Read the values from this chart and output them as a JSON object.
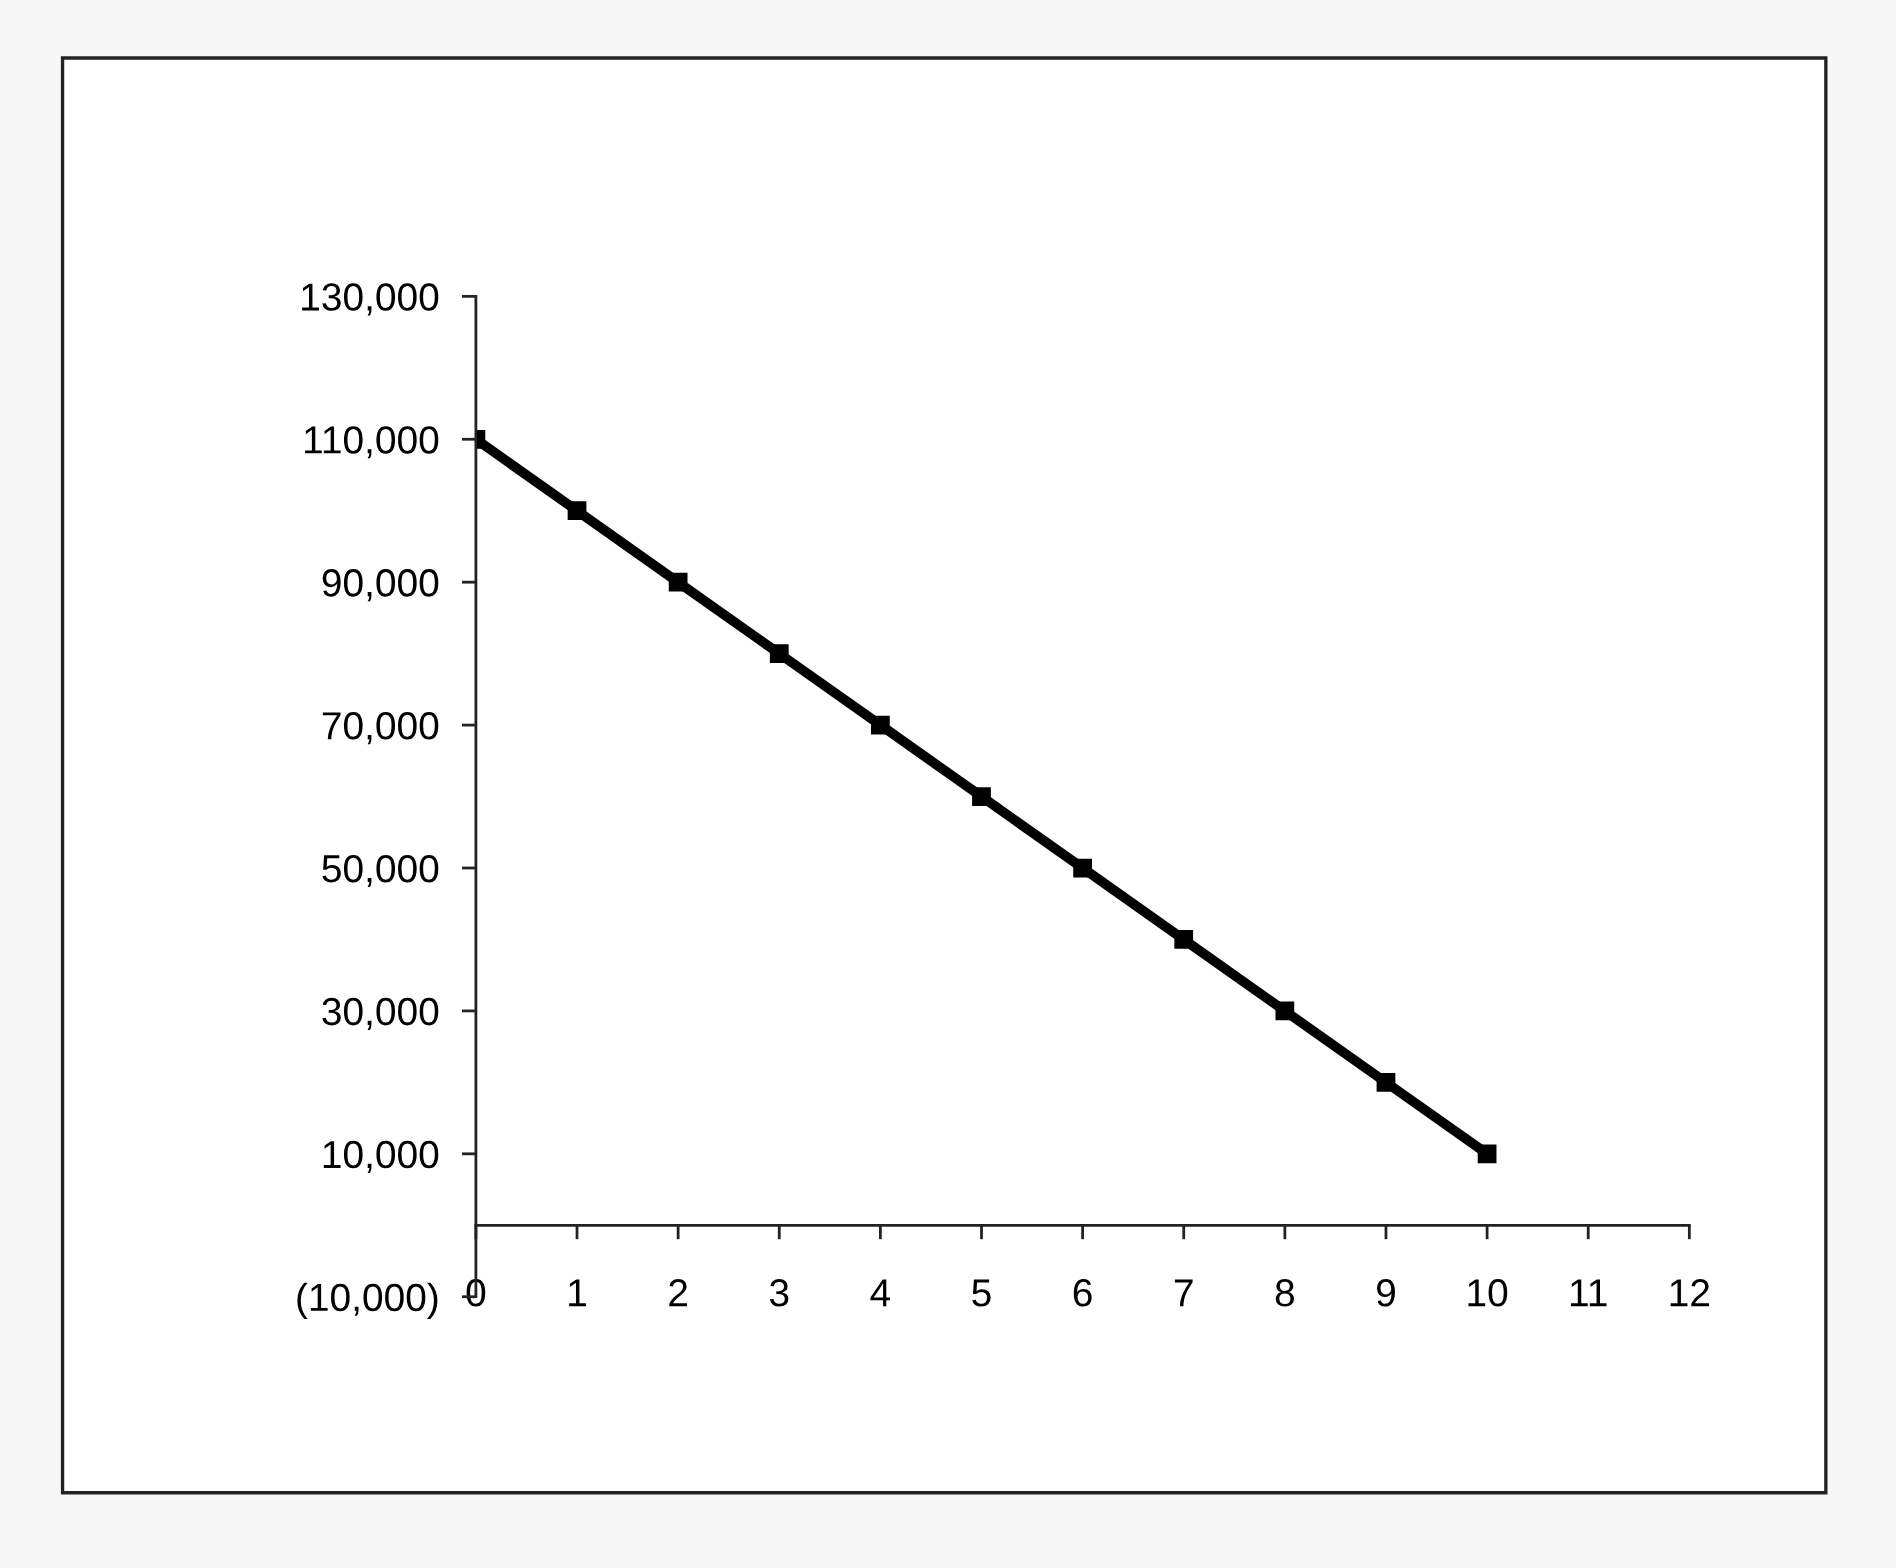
{
  "chart_data": {
    "type": "line",
    "x": [
      0,
      1,
      2,
      3,
      4,
      5,
      6,
      7,
      8,
      9,
      10
    ],
    "series": [
      {
        "color": "#000000",
        "values": [
          110000,
          100000,
          90000,
          80000,
          70000,
          60000,
          50000,
          40000,
          30000,
          20000,
          10000
        ]
      }
    ],
    "xlim": [
      0,
      12
    ],
    "xticks": [
      0,
      1,
      2,
      3,
      4,
      5,
      6,
      7,
      8,
      9,
      10,
      11,
      12
    ],
    "ylim": [
      -10000,
      130000
    ],
    "yticks": [
      {
        "value": -10000,
        "label": "(10,000)"
      },
      {
        "value": 10000,
        "label": "10,000"
      },
      {
        "value": 30000,
        "label": "30,000"
      },
      {
        "value": 50000,
        "label": "50,000"
      },
      {
        "value": 70000,
        "label": "70,000"
      },
      {
        "value": 90000,
        "label": "90,000"
      },
      {
        "value": 110000,
        "label": "110,000"
      },
      {
        "value": 130000,
        "label": "130,000"
      }
    ],
    "marker": "square",
    "line_style": "solid",
    "grid": false,
    "legend": false
  }
}
